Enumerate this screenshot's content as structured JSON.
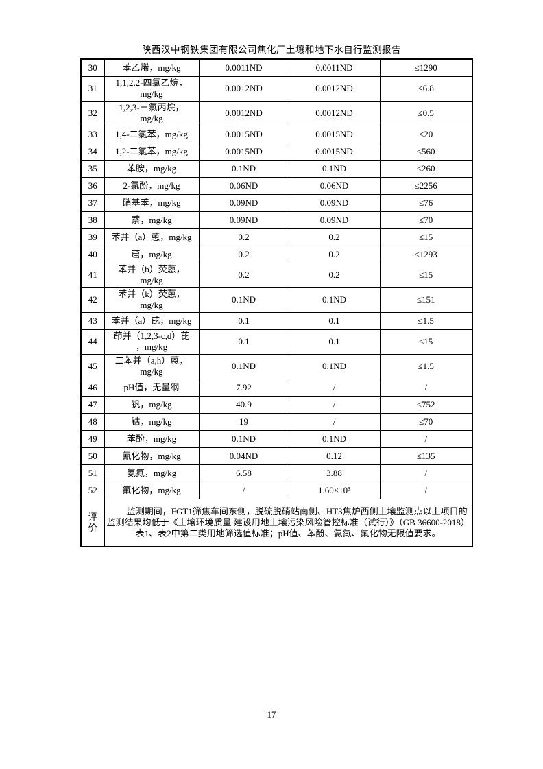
{
  "page": {
    "header_title": "陕西汉中钢铁集团有限公司焦化厂土壤和地下水自行监测报告",
    "page_number": "17"
  },
  "table": {
    "rows": [
      {
        "no": "30",
        "name": "苯乙烯，mg/kg",
        "value1": "0.0011ND",
        "value2": "0.0011ND",
        "limit": "≤1290"
      },
      {
        "no": "31",
        "name": "1,1,2,2-四氯乙烷，\nmg/kg",
        "value1": "0.0012ND",
        "value2": "0.0012ND",
        "limit": "≤6.8"
      },
      {
        "no": "32",
        "name": "1,2,3-三氯丙烷，\nmg/kg",
        "value1": "0.0012ND",
        "value2": "0.0012ND",
        "limit": "≤0.5"
      },
      {
        "no": "33",
        "name": "1,4-二氯苯，mg/kg",
        "value1": "0.0015ND",
        "value2": "0.0015ND",
        "limit": "≤20"
      },
      {
        "no": "34",
        "name": "1,2-二氯苯，mg/kg",
        "value1": "0.0015ND",
        "value2": "0.0015ND",
        "limit": "≤560"
      },
      {
        "no": "35",
        "name": "苯胺，mg/kg",
        "value1": "0.1ND",
        "value2": "0.1ND",
        "limit": "≤260"
      },
      {
        "no": "36",
        "name": "2-氯酚，mg/kg",
        "value1": "0.06ND",
        "value2": "0.06ND",
        "limit": "≤2256"
      },
      {
        "no": "37",
        "name": "硝基苯，mg/kg",
        "value1": "0.09ND",
        "value2": "0.09ND",
        "limit": "≤76"
      },
      {
        "no": "38",
        "name": "萘，mg/kg",
        "value1": "0.09ND",
        "value2": "0.09ND",
        "limit": "≤70"
      },
      {
        "no": "39",
        "name": "苯并（a）蒽，mg/kg",
        "value1": "0.2",
        "value2": "0.2",
        "limit": "≤15"
      },
      {
        "no": "40",
        "name": "䓛，mg/kg",
        "value1": "0.2",
        "value2": "0.2",
        "limit": "≤1293"
      },
      {
        "no": "41",
        "name": "苯并（b）荧蒽，\nmg/kg",
        "value1": "0.2",
        "value2": "0.2",
        "limit": "≤15"
      },
      {
        "no": "42",
        "name": "苯并（k）荧蒽，\nmg/kg",
        "value1": "0.1ND",
        "value2": "0.1ND",
        "limit": "≤151"
      },
      {
        "no": "43",
        "name": "苯并（a）芘，mg/kg",
        "value1": "0.1",
        "value2": "0.1",
        "limit": "≤1.5"
      },
      {
        "no": "44",
        "name": "茚并（1,2,3-c,d）芘\n，mg/kg",
        "value1": "0.1",
        "value2": "0.1",
        "limit": "≤15"
      },
      {
        "no": "45",
        "name": "二苯并（a,h）蒽，\nmg/kg",
        "value1": "0.1ND",
        "value2": "0.1ND",
        "limit": "≤1.5"
      },
      {
        "no": "46",
        "name": "pH值，无量纲",
        "value1": "7.92",
        "value2": "/",
        "limit": "/"
      },
      {
        "no": "47",
        "name": "钒，mg/kg",
        "value1": "40.9",
        "value2": "/",
        "limit": "≤752"
      },
      {
        "no": "48",
        "name": "钴，mg/kg",
        "value1": "19",
        "value2": "/",
        "limit": "≤70"
      },
      {
        "no": "49",
        "name": "苯酚，mg/kg",
        "value1": "0.1ND",
        "value2": "0.1ND",
        "limit": "/"
      },
      {
        "no": "50",
        "name": "氰化物，mg/kg",
        "value1": "0.04ND",
        "value2": "0.12",
        "limit": "≤135"
      },
      {
        "no": "51",
        "name": "氨氮，mg/kg",
        "value1": "6.58",
        "value2": "3.88",
        "limit": "/"
      },
      {
        "no": "52",
        "name": "氟化物，mg/kg",
        "value1": "/",
        "value2": "1.60×10³",
        "limit": "/"
      }
    ],
    "evaluation": {
      "label": "评\n价",
      "text": "监测期间，FGT1筛焦车间东侧，脱硫脱硝站南侧、HT3焦炉西侧土壤监测点以上项目的监测结果均低于《土壤环境质量 建设用地土壤污染风险管控标准（试行）》（GB 36600-2018）表1、表2中第二类用地筛选值标准；pH值、苯酚、氨氮、氟化物无限值要求。"
    }
  }
}
